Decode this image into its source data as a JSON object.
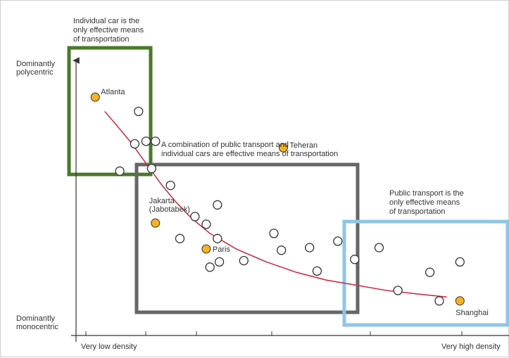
{
  "chart_data": {
    "type": "scatter",
    "xlabel_low": "Very low density",
    "xlabel_high": "Very high density",
    "ylabel_high": [
      "Dominantly",
      "polycentric"
    ],
    "ylabel_low": [
      "Dominantly",
      "monocentric"
    ],
    "xlim": [
      0,
      100
    ],
    "ylim": [
      0,
      100
    ],
    "grid": false,
    "colors": {
      "green_box": "#4a7a24",
      "gray_box": "#666666",
      "blue_box": "#8ec6e8",
      "trend_curve": "#c8334b",
      "highlight_point": "#f3b323",
      "open_point_stroke": "#333333",
      "axis": "#333333"
    },
    "regions": [
      {
        "color_key": "green_box",
        "annotation": [
          "Individual car is the",
          "only effective means",
          "of transportation"
        ]
      },
      {
        "color_key": "gray_box",
        "annotation": [
          "A combination of public transport and",
          "individual cars are effective means of transportation"
        ]
      },
      {
        "color_key": "blue_box",
        "annotation": [
          "Public transport is the",
          "only effective means",
          "of transportation"
        ]
      }
    ],
    "trend_line": [
      [
        5,
        82
      ],
      [
        8,
        77
      ],
      [
        12,
        70
      ],
      [
        16,
        62
      ],
      [
        20,
        54
      ],
      [
        24,
        47
      ],
      [
        28,
        41
      ],
      [
        33,
        35
      ],
      [
        40,
        29
      ],
      [
        48,
        24
      ],
      [
        56,
        20
      ],
      [
        64,
        17
      ],
      [
        72,
        15
      ],
      [
        80,
        13
      ],
      [
        88,
        11.7
      ],
      [
        96,
        10.5
      ]
    ],
    "points": [
      [
        14,
        82
      ],
      [
        9,
        59
      ],
      [
        13,
        69.5
      ],
      [
        16,
        70.5
      ],
      [
        18.5,
        70.5
      ],
      [
        17.5,
        60
      ],
      [
        22.5,
        53.5
      ],
      [
        35,
        46
      ],
      [
        32,
        38.5
      ],
      [
        29,
        41.5
      ],
      [
        25,
        33
      ],
      [
        35,
        33
      ],
      [
        33,
        22
      ],
      [
        35.5,
        24
      ],
      [
        42,
        24.5
      ],
      [
        50,
        35
      ],
      [
        52,
        28.5
      ],
      [
        59.5,
        29.5
      ],
      [
        61.5,
        20.5
      ],
      [
        67,
        32
      ],
      [
        71.5,
        25
      ],
      [
        78,
        29.5
      ],
      [
        83,
        13
      ],
      [
        91.5,
        20
      ],
      [
        94,
        9
      ],
      [
        99.5,
        24
      ]
    ],
    "highlighted_points": [
      {
        "label": "Atlanta",
        "x": 2.5,
        "y": 87.5
      },
      {
        "label": "Teheran",
        "x": 52.5,
        "y": 68
      },
      {
        "label": "Jakarta",
        "label_line2": "(Jabotabek)",
        "x": 18.5,
        "y": 39
      },
      {
        "label": "Paris",
        "x": 32,
        "y": 29
      },
      {
        "label": "Shanghai",
        "x": 99.5,
        "y": 9
      }
    ]
  }
}
